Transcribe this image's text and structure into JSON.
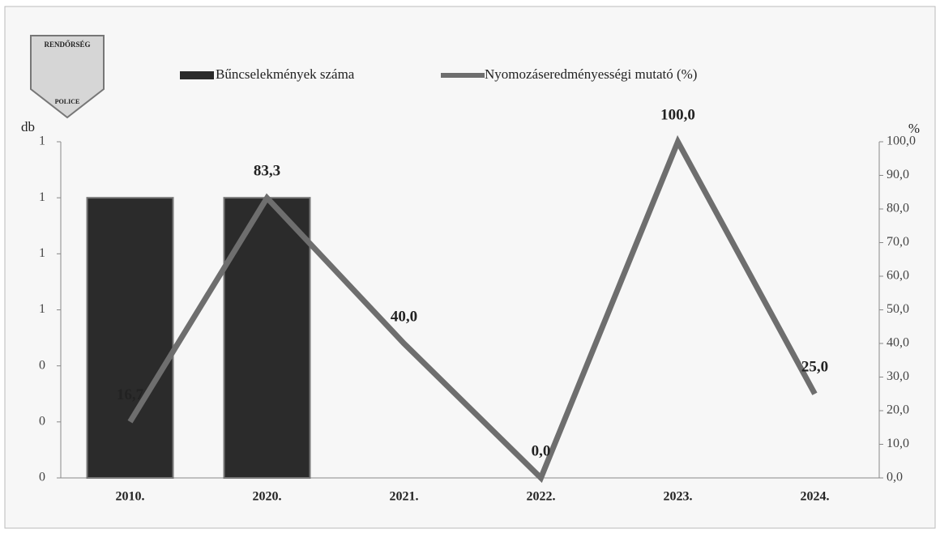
{
  "logo": {
    "top": "RENDŐRSÉG",
    "bottom": "POLICE"
  },
  "chart_data": {
    "type": "bar-line",
    "ylabel": "db",
    "y2label": "%",
    "categories": [
      "2010.",
      "2020.",
      "2021.",
      "2022.",
      "2023.",
      "2024."
    ],
    "series": [
      {
        "name": "Bűncselekmények száma",
        "type": "bar",
        "color": "#2b2b2b",
        "values": [
          1,
          1,
          null,
          null,
          null,
          null
        ]
      },
      {
        "name": "Nyomozáseredményességi mutató (%)",
        "type": "line",
        "axis": "y2",
        "color": "#6e6e6e",
        "values": [
          16.7,
          83.3,
          40.0,
          0.0,
          100.0,
          25.0
        ],
        "value_labels": [
          "16,7",
          "83,3",
          "40,0",
          "0,0",
          "100,0",
          "25,0"
        ]
      }
    ],
    "ylim": [
      0,
      1.2
    ],
    "yticks": [
      {
        "value": 0,
        "label": "0"
      },
      {
        "value": 0.2,
        "label": "0"
      },
      {
        "value": 0.4,
        "label": "0"
      },
      {
        "value": 0.6,
        "label": "1"
      },
      {
        "value": 0.8,
        "label": "1"
      },
      {
        "value": 1.0,
        "label": "1"
      },
      {
        "value": 1.2,
        "label": "1"
      }
    ],
    "y2lim": [
      0,
      100
    ],
    "y2ticks": [
      {
        "value": 0,
        "label": "0,0"
      },
      {
        "value": 10,
        "label": "10,0"
      },
      {
        "value": 20,
        "label": "20,0"
      },
      {
        "value": 30,
        "label": "30,0"
      },
      {
        "value": 40,
        "label": "40,0"
      },
      {
        "value": 50,
        "label": "50,0"
      },
      {
        "value": 60,
        "label": "60,0"
      },
      {
        "value": 70,
        "label": "70,0"
      },
      {
        "value": 80,
        "label": "80,0"
      },
      {
        "value": 90,
        "label": "90,0"
      },
      {
        "value": 100,
        "label": "100,0"
      }
    ]
  }
}
